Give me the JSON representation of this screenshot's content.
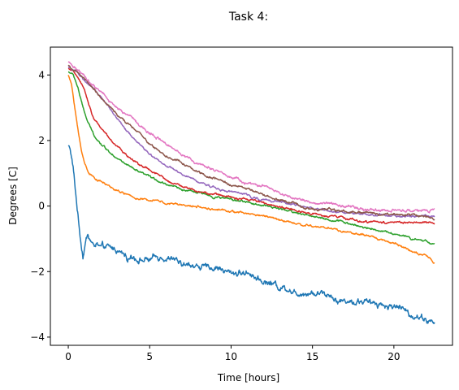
{
  "chart_data": {
    "type": "line",
    "title": "Task 4:",
    "xlabel": "Time [hours]",
    "ylabel": "Degrees [C]",
    "xlim": [
      -1.1,
      23.6
    ],
    "ylim": [
      -4.25,
      4.85
    ],
    "xticks": [
      0,
      5,
      10,
      15,
      20
    ],
    "yticks": [
      -4,
      -2,
      0,
      2,
      4
    ],
    "ytick_labels": [
      "−4",
      "−2",
      "0",
      "2",
      "4"
    ],
    "grid": false,
    "legend": "none",
    "series": [
      {
        "color": "#1f77b4",
        "noise": 0.18,
        "points": [
          [
            0,
            1.85
          ],
          [
            0.1,
            1.8
          ],
          [
            0.3,
            1.2
          ],
          [
            0.5,
            0.2
          ],
          [
            0.7,
            -0.8
          ],
          [
            0.9,
            -1.55
          ],
          [
            1.0,
            -1.3
          ],
          [
            1.2,
            -0.85
          ],
          [
            1.5,
            -1.15
          ],
          [
            2,
            -1.25
          ],
          [
            3,
            -1.35
          ],
          [
            4,
            -1.5
          ],
          [
            5,
            -1.65
          ],
          [
            6,
            -1.65
          ],
          [
            7,
            -1.85
          ],
          [
            8,
            -1.85
          ],
          [
            9,
            -1.95
          ],
          [
            10,
            -2.0
          ],
          [
            11,
            -2.05
          ],
          [
            12,
            -2.2
          ],
          [
            13,
            -2.4
          ],
          [
            14,
            -2.55
          ],
          [
            15,
            -2.6
          ],
          [
            16,
            -2.7
          ],
          [
            17,
            -2.85
          ],
          [
            18,
            -2.95
          ],
          [
            19,
            -3.05
          ],
          [
            20,
            -3.1
          ],
          [
            21,
            -3.25
          ],
          [
            22,
            -3.45
          ],
          [
            22.5,
            -3.6
          ]
        ]
      },
      {
        "color": "#ff7f0e",
        "noise": 0.06,
        "points": [
          [
            0,
            4.0
          ],
          [
            0.2,
            3.7
          ],
          [
            0.4,
            3.0
          ],
          [
            0.6,
            2.3
          ],
          [
            0.8,
            1.7
          ],
          [
            1.0,
            1.3
          ],
          [
            1.3,
            1.0
          ],
          [
            2,
            0.75
          ],
          [
            3,
            0.45
          ],
          [
            4,
            0.25
          ],
          [
            5,
            0.15
          ],
          [
            6,
            0.05
          ],
          [
            7,
            0.0
          ],
          [
            8,
            -0.05
          ],
          [
            10,
            -0.2
          ],
          [
            12,
            -0.3
          ],
          [
            14,
            -0.5
          ],
          [
            16,
            -0.7
          ],
          [
            18,
            -0.9
          ],
          [
            20,
            -1.15
          ],
          [
            22,
            -1.5
          ],
          [
            22.5,
            -1.75
          ]
        ]
      },
      {
        "color": "#2ca02c",
        "noise": 0.06,
        "points": [
          [
            0,
            4.1
          ],
          [
            0.3,
            4.0
          ],
          [
            0.6,
            3.6
          ],
          [
            0.9,
            3.0
          ],
          [
            1.2,
            2.55
          ],
          [
            1.6,
            2.15
          ],
          [
            2,
            1.9
          ],
          [
            3,
            1.45
          ],
          [
            4,
            1.1
          ],
          [
            5,
            0.85
          ],
          [
            6,
            0.65
          ],
          [
            7,
            0.5
          ],
          [
            8,
            0.4
          ],
          [
            10,
            0.2
          ],
          [
            12,
            0.05
          ],
          [
            14,
            -0.2
          ],
          [
            16,
            -0.4
          ],
          [
            18,
            -0.6
          ],
          [
            20,
            -0.8
          ],
          [
            22,
            -1.05
          ],
          [
            22.5,
            -1.15
          ]
        ]
      },
      {
        "color": "#d62728",
        "noise": 0.06,
        "points": [
          [
            0,
            4.2
          ],
          [
            0.5,
            4.0
          ],
          [
            1,
            3.5
          ],
          [
            1.5,
            2.75
          ],
          [
            2,
            2.35
          ],
          [
            3,
            1.8
          ],
          [
            4,
            1.4
          ],
          [
            5,
            1.1
          ],
          [
            6,
            0.8
          ],
          [
            7,
            0.6
          ],
          [
            8,
            0.45
          ],
          [
            10,
            0.25
          ],
          [
            12,
            0.1
          ],
          [
            14,
            -0.1
          ],
          [
            16,
            -0.3
          ],
          [
            18,
            -0.45
          ],
          [
            20,
            -0.5
          ],
          [
            22,
            -0.55
          ],
          [
            22.5,
            -0.55
          ]
        ]
      },
      {
        "color": "#9467bd",
        "noise": 0.06,
        "points": [
          [
            0,
            4.25
          ],
          [
            0.5,
            4.1
          ],
          [
            1,
            3.8
          ],
          [
            2,
            3.3
          ],
          [
            3,
            2.7
          ],
          [
            4,
            2.1
          ],
          [
            5,
            1.6
          ],
          [
            6,
            1.25
          ],
          [
            7,
            0.95
          ],
          [
            8,
            0.75
          ],
          [
            10,
            0.45
          ],
          [
            12,
            0.2
          ],
          [
            14,
            0.0
          ],
          [
            16,
            -0.15
          ],
          [
            18,
            -0.25
          ],
          [
            20,
            -0.3
          ],
          [
            22,
            -0.3
          ],
          [
            22.5,
            -0.3
          ]
        ]
      },
      {
        "color": "#8c564b",
        "noise": 0.07,
        "points": [
          [
            0,
            4.3
          ],
          [
            0.5,
            4.1
          ],
          [
            1,
            3.9
          ],
          [
            2,
            3.3
          ],
          [
            3,
            2.8
          ],
          [
            4,
            2.35
          ],
          [
            5,
            1.9
          ],
          [
            6,
            1.55
          ],
          [
            7,
            1.3
          ],
          [
            8,
            1.05
          ],
          [
            10,
            0.65
          ],
          [
            12,
            0.35
          ],
          [
            14,
            0.05
          ],
          [
            16,
            -0.1
          ],
          [
            18,
            -0.2
          ],
          [
            20,
            -0.25
          ],
          [
            22,
            -0.3
          ],
          [
            22.5,
            -0.35
          ]
        ]
      },
      {
        "color": "#e377c2",
        "noise": 0.08,
        "points": [
          [
            0,
            4.4
          ],
          [
            0.5,
            4.2
          ],
          [
            1,
            4.0
          ],
          [
            2,
            3.5
          ],
          [
            3,
            3.0
          ],
          [
            4,
            2.6
          ],
          [
            5,
            2.2
          ],
          [
            6,
            1.85
          ],
          [
            7,
            1.55
          ],
          [
            8,
            1.3
          ],
          [
            10,
            0.85
          ],
          [
            12,
            0.55
          ],
          [
            14,
            0.2
          ],
          [
            16,
            0.05
          ],
          [
            18,
            -0.1
          ],
          [
            20,
            -0.15
          ],
          [
            22,
            -0.15
          ],
          [
            22.5,
            -0.15
          ]
        ]
      }
    ]
  }
}
